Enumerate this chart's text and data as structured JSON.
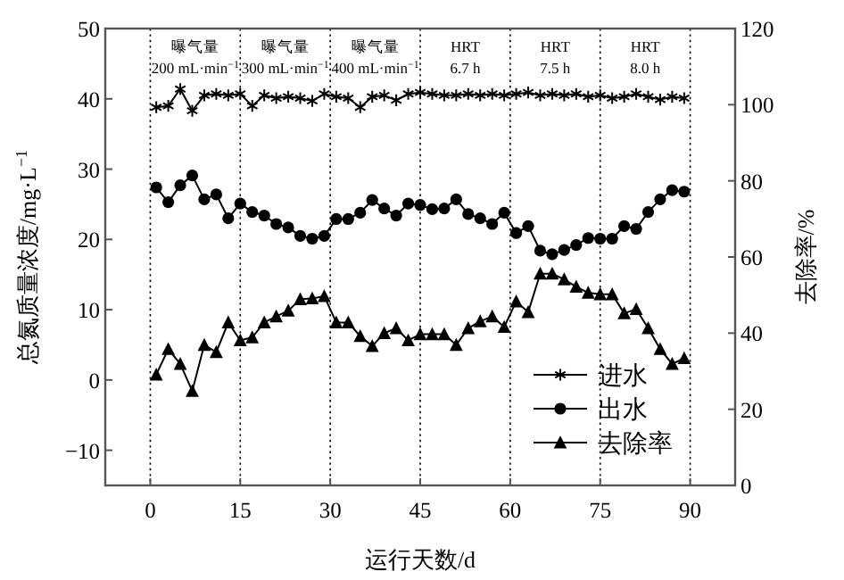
{
  "chart_data": {
    "type": "line",
    "xlabel": "运行天数/d",
    "ylabel": "总氮质量浓度/mg·L$^{−1}$",
    "y2label": "去除率/%",
    "x": [
      1,
      3,
      5,
      7,
      9,
      11,
      13,
      15,
      17,
      19,
      21,
      23,
      25,
      27,
      29,
      31,
      33,
      35,
      37,
      39,
      41,
      43,
      45,
      47,
      49,
      51,
      53,
      55,
      57,
      59,
      61,
      63,
      65,
      67,
      69,
      71,
      73,
      75,
      77,
      79,
      81,
      83,
      85,
      87,
      89
    ],
    "xlim": [
      -7.5,
      97.5
    ],
    "xticks": [
      0,
      15,
      30,
      45,
      60,
      75,
      90
    ],
    "ylim": [
      -15,
      50
    ],
    "yticks": [
      -10,
      0,
      10,
      20,
      30,
      40,
      50
    ],
    "y2lim": [
      0,
      120
    ],
    "y2ticks": [
      0,
      20,
      40,
      60,
      80,
      100,
      120
    ],
    "grid": false,
    "legend": "bottom right",
    "series": [
      {
        "name": "进水",
        "color": "#000000",
        "marker": "cross",
        "values": [
          38.8,
          39.0,
          41.4,
          38.3,
          40.5,
          40.7,
          40.5,
          40.7,
          39.0,
          40.5,
          40.1,
          40.3,
          40.1,
          39.7,
          40.7,
          40.3,
          40.1,
          38.8,
          40.3,
          40.5,
          39.8,
          40.7,
          40.9,
          40.7,
          40.5,
          40.5,
          40.7,
          40.5,
          40.7,
          40.5,
          40.7,
          40.9,
          40.5,
          40.7,
          40.5,
          40.7,
          40.3,
          40.5,
          40.1,
          40.3,
          40.7,
          40.3,
          39.9,
          40.3,
          40.1
        ]
      },
      {
        "name": "出水",
        "color": "#000000",
        "marker": "circle",
        "values": [
          27.4,
          25.3,
          27.7,
          29.1,
          25.7,
          26.4,
          23.0,
          25.1,
          23.9,
          23.4,
          22.2,
          21.7,
          20.5,
          20.1,
          20.5,
          22.9,
          22.9,
          23.8,
          25.6,
          24.4,
          23.4,
          25.1,
          24.9,
          24.3,
          24.4,
          25.7,
          23.6,
          23.0,
          22.2,
          23.8,
          20.9,
          21.9,
          18.4,
          17.9,
          18.5,
          19.2,
          20.2,
          20.1,
          20.1,
          21.9,
          21.5,
          23.9,
          25.7,
          27.0,
          26.8
        ]
      },
      {
        "name": "去除率",
        "color": "#000000",
        "marker": "triangle",
        "axis": "y2",
        "values": [
          29.1,
          35.8,
          31.9,
          24.8,
          36.9,
          35.0,
          42.8,
          38.1,
          38.9,
          42.8,
          44.4,
          45.9,
          48.9,
          49.1,
          49.7,
          42.8,
          42.8,
          39.2,
          36.6,
          40.0,
          41.3,
          38.1,
          39.7,
          39.7,
          39.7,
          36.9,
          41.3,
          43.1,
          44.4,
          41.6,
          48.3,
          45.5,
          55.6,
          55.6,
          54.1,
          52.2,
          50.6,
          50.2,
          50.2,
          45.2,
          46.3,
          41.3,
          35.8,
          31.9,
          33.4
        ]
      }
    ],
    "ref_lines": [
      {
        "axis": "x",
        "value": 0,
        "line_style": "dotted"
      },
      {
        "axis": "x",
        "value": 15,
        "line_style": "dotted"
      },
      {
        "axis": "x",
        "value": 30,
        "line_style": "dotted"
      },
      {
        "axis": "x",
        "value": 45,
        "line_style": "dotted"
      },
      {
        "axis": "x",
        "value": 60,
        "line_style": "dotted"
      },
      {
        "axis": "x",
        "value": 75,
        "line_style": "dotted"
      },
      {
        "axis": "x",
        "value": 90,
        "line_style": "dotted"
      }
    ],
    "annotations": [
      "曝气量\n200 mL·min$^{−1}$",
      "曝气量\n300 mL·min$^{−1}$",
      "曝气量\n400 mL·min$^{−1}$",
      "HRT\n6.7 h",
      "HRT\n7.5 h",
      "HRT\n8.0 h"
    ]
  }
}
